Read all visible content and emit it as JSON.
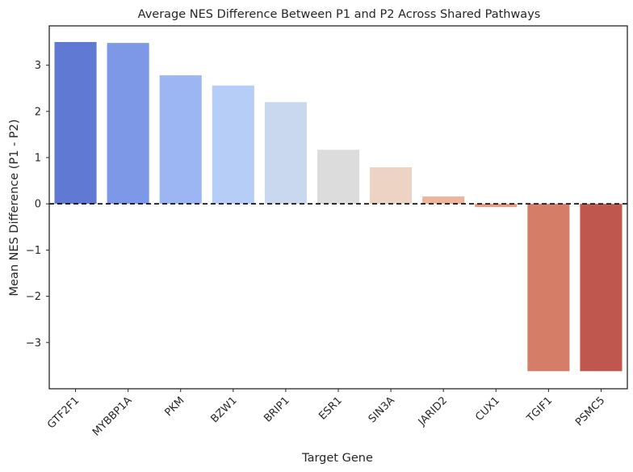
{
  "chart_data": {
    "type": "bar",
    "title": "Average NES Difference Between P1 and P2 Across Shared Pathways",
    "xlabel": "Target Gene",
    "ylabel": "Mean NES Difference (P1 - P2)",
    "categories": [
      "GTF2F1",
      "MYBBP1A",
      "PKM",
      "BZW1",
      "BRIP1",
      "ESR1",
      "SIN3A",
      "JARID2",
      "CUX1",
      "TGIF1",
      "PSMC5"
    ],
    "values": [
      3.5,
      3.48,
      2.78,
      2.56,
      2.2,
      1.17,
      0.79,
      0.16,
      -0.07,
      -3.62,
      -3.62
    ],
    "colors": [
      "#6079d2",
      "#7d98e6",
      "#9bb6f2",
      "#b5cdf7",
      "#cad8ef",
      "#dddcdc",
      "#ecd3c4",
      "#efb59a",
      "#e89a7d",
      "#d57d67",
      "#c0574e"
    ],
    "ylim": [
      -4.0,
      3.85
    ],
    "yticks": [
      -3,
      -2,
      -1,
      0,
      1,
      2,
      3
    ],
    "ytick_labels": [
      "−3",
      "−2",
      "−1",
      "0",
      "1",
      "2",
      "3"
    ],
    "reference_line": {
      "y": 0,
      "style": "dashed",
      "color": "#000000"
    },
    "grid": false,
    "legend": "none"
  }
}
